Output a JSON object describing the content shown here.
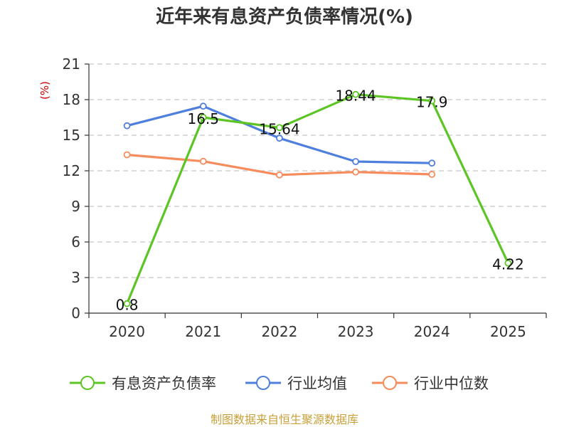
{
  "chart_data": {
    "type": "line",
    "title": "近年来有息资产负债率情况(%)",
    "ylabel": "(%)",
    "categories": [
      "2020",
      "2021",
      "2022",
      "2023",
      "2024",
      "2025"
    ],
    "ylim": [
      0,
      21
    ],
    "yticks": [
      "0",
      "3",
      "6",
      "9",
      "12",
      "15",
      "18",
      "21"
    ],
    "grid": true,
    "legend_position": "bottom",
    "series": [
      {
        "name": "有息资产负债率",
        "color": "#5cc524",
        "values": [
          0.8,
          16.5,
          15.64,
          18.44,
          17.9,
          4.22
        ],
        "labels": [
          "0.8",
          "16.5",
          "15.64",
          "18.44",
          "17.9",
          "4.22"
        ]
      },
      {
        "name": "行业均值",
        "color": "#4f7fdc",
        "values": [
          15.8,
          17.45,
          14.75,
          12.78,
          12.65,
          null
        ]
      },
      {
        "name": "行业中位数",
        "color": "#f68b5b",
        "values": [
          13.35,
          12.8,
          11.65,
          11.9,
          11.7,
          null
        ]
      }
    ],
    "source": "制图数据来自恒生聚源数据库"
  }
}
